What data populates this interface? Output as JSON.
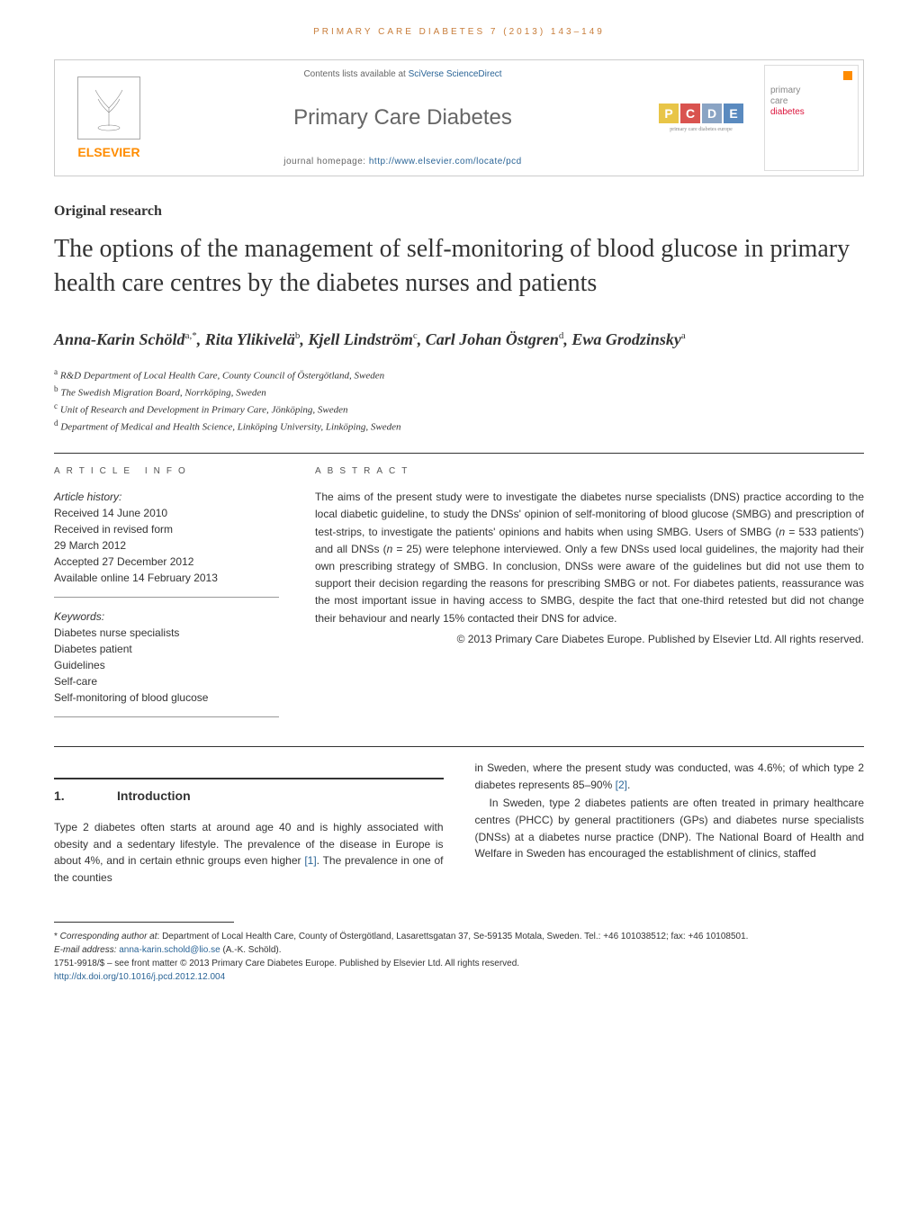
{
  "running_head": "PRIMARY CARE DIABETES 7 (2013) 143–149",
  "header": {
    "elsevier": "ELSEVIER",
    "contents_prefix": "Contents lists available at ",
    "contents_link": "SciVerse ScienceDirect",
    "journal_name": "Primary Care Diabetes",
    "homepage_prefix": "journal homepage: ",
    "homepage_url": "http://www.elsevier.com/locate/pcd",
    "pcde_letters": [
      "P",
      "C",
      "D",
      "E"
    ],
    "pcde_colors": [
      "#e8c547",
      "#d9534f",
      "#8aa4c4",
      "#5a8abf"
    ],
    "pcde_subtitle": "primary care diabetes europe",
    "cover_line1": "primary",
    "cover_line2": "care",
    "cover_line3": "diabetes"
  },
  "article_type": "Original research",
  "title": "The options of the management of self-monitoring of blood glucose in primary health care centres by the diabetes nurses and patients",
  "authors_html": "Anna-Karin Schöld<sup>a,*</sup>, Rita Ylikivelä<sup>b</sup>, Kjell Lindström<sup>c</sup>, Carl Johan Östgren<sup>d</sup>, Ewa Grodzinsky<sup>a</sup>",
  "affiliations": [
    {
      "sup": "a",
      "text": "R&D Department of Local Health Care, County Council of Östergötland, Sweden"
    },
    {
      "sup": "b",
      "text": "The Swedish Migration Board, Norrköping, Sweden"
    },
    {
      "sup": "c",
      "text": "Unit of Research and Development in Primary Care, Jönköping, Sweden"
    },
    {
      "sup": "d",
      "text": "Department of Medical and Health Science, Linköping University, Linköping, Sweden"
    }
  ],
  "article_info": {
    "label": "ARTICLE INFO",
    "history_label": "Article history:",
    "received": "Received 14 June 2010",
    "revised_label": "Received in revised form",
    "revised_date": "29 March 2012",
    "accepted": "Accepted 27 December 2012",
    "online": "Available online 14 February 2013",
    "keywords_label": "Keywords:",
    "keywords": [
      "Diabetes nurse specialists",
      "Diabetes patient",
      "Guidelines",
      "Self-care",
      "Self-monitoring of blood glucose"
    ]
  },
  "abstract": {
    "label": "ABSTRACT",
    "text": "The aims of the present study were to investigate the diabetes nurse specialists (DNS) practice according to the local diabetic guideline, to study the DNSs' opinion of self-monitoring of blood glucose (SMBG) and prescription of test-strips, to investigate the patients' opinions and habits when using SMBG. Users of SMBG (n = 533 patients') and all DNSs (n = 25) were telephone interviewed. Only a few DNSs used local guidelines, the majority had their own prescribing strategy of SMBG. In conclusion, DNSs were aware of the guidelines but did not use them to support their decision regarding the reasons for prescribing SMBG or not. For diabetes patients, reassurance was the most important issue in having access to SMBG, despite the fact that one-third retested but did not change their behaviour and nearly 15% contacted their DNS for advice.",
    "copyright": "© 2013 Primary Care Diabetes Europe. Published by Elsevier Ltd. All rights reserved."
  },
  "section1": {
    "number": "1.",
    "title": "Introduction"
  },
  "body": {
    "col1_p1": "Type 2 diabetes often starts at around age 40 and is highly associated with obesity and a sedentary lifestyle. The prevalence of the disease in Europe is about 4%, and in certain ethnic groups even higher ",
    "col1_ref": "[1]",
    "col1_p1b": ". The prevalence in one of the counties",
    "col2_p1": "in Sweden, where the present study was conducted, was 4.6%; of which type 2 diabetes represents 85–90% ",
    "col2_ref": "[2]",
    "col2_p1b": ".",
    "col2_p2": "In Sweden, type 2 diabetes patients are often treated in primary healthcare centres (PHCC) by general practitioners (GPs) and diabetes nurse specialists (DNSs) at a diabetes nurse practice (DNP). The National Board of Health and Welfare in Sweden has encouraged the establishment of clinics, staffed"
  },
  "footer": {
    "corresponding_label": "Corresponding author at",
    "corresponding_text": ": Department of Local Health Care, County of Östergötland, Lasarettsgatan 37, Se-59135 Motala, Sweden. Tel.: +46 101038512; fax: +46 10108501.",
    "email_label": "E-mail address: ",
    "email": "anna-karin.schold@lio.se",
    "email_name": " (A.-K. Schöld).",
    "issn_line": "1751-9918/$ – see front matter © 2013 Primary Care Diabetes Europe. Published by Elsevier Ltd. All rights reserved.",
    "doi": "http://dx.doi.org/10.1016/j.pcd.2012.12.004"
  },
  "colors": {
    "orange": "#ff8c00",
    "link": "#2a6496",
    "runhead": "#c87d3a"
  }
}
